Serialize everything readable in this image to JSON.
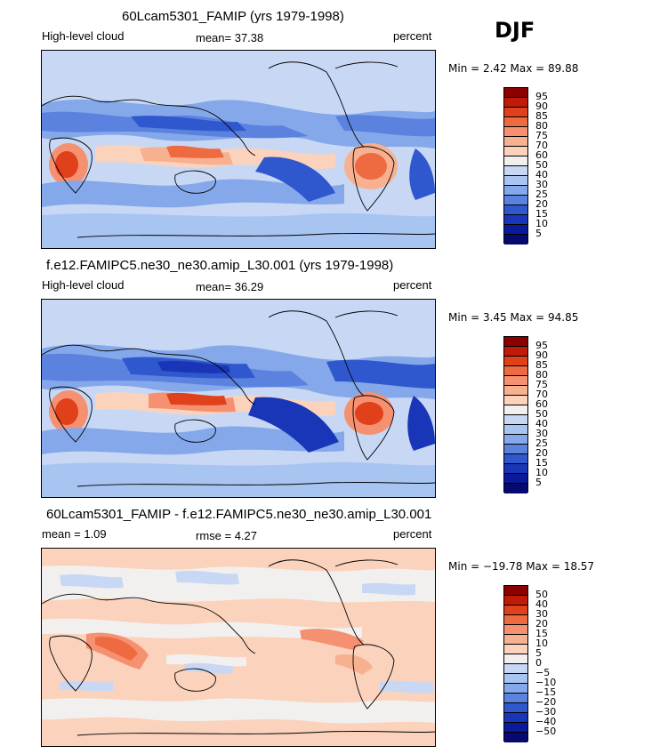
{
  "season": "DJF",
  "panels": [
    {
      "title": "60Lcam5301_FAMIP (yrs 1979-1998)",
      "left_label": "High-level cloud",
      "center_label": "mean=  37.38",
      "right_label": "percent",
      "minmax": "Min =   2.42 Max =  89.88",
      "colorbar_labels": [
        "95",
        "90",
        "85",
        "80",
        "75",
        "70",
        "60",
        "50",
        "40",
        "30",
        "25",
        "20",
        "15",
        "10",
        "5"
      ],
      "colorbar_colors": [
        "#8b0000",
        "#c01a08",
        "#e0401a",
        "#ee6a40",
        "#f59070",
        "#f7b090",
        "#fbd2bc",
        "#f2f0ee",
        "#c8d8f4",
        "#a8c4f0",
        "#84a8ea",
        "#5a82de",
        "#3058ce",
        "#1a36b8",
        "#0a1a9a",
        "#060a70"
      ]
    },
    {
      "title": "f.e12.FAMIPC5.ne30_ne30.amip_L30.001 (yrs 1979-1998)",
      "left_label": "High-level cloud",
      "center_label": "mean=  36.29",
      "right_label": "percent",
      "minmax": "Min =   3.45 Max =  94.85",
      "colorbar_labels": [
        "95",
        "90",
        "85",
        "80",
        "75",
        "70",
        "60",
        "50",
        "40",
        "30",
        "25",
        "20",
        "15",
        "10",
        "5"
      ],
      "colorbar_colors": [
        "#8b0000",
        "#c01a08",
        "#e0401a",
        "#ee6a40",
        "#f59070",
        "#f7b090",
        "#fbd2bc",
        "#f2f0ee",
        "#c8d8f4",
        "#a8c4f0",
        "#84a8ea",
        "#5a82de",
        "#3058ce",
        "#1a36b8",
        "#0a1a9a",
        "#060a70"
      ]
    },
    {
      "title": "60Lcam5301_FAMIP - f.e12.FAMIPC5.ne30_ne30.amip_L30.001",
      "left_label": "mean =    1.09",
      "center_label": "rmse =    4.27",
      "right_label": "percent",
      "minmax": "Min = −19.78 Max =  18.57",
      "colorbar_labels": [
        "50",
        "40",
        "30",
        "20",
        "15",
        "10",
        "5",
        "0",
        "−5",
        "−10",
        "−15",
        "−20",
        "−30",
        "−40",
        "−50"
      ],
      "colorbar_colors": [
        "#8b0000",
        "#c01a08",
        "#e0401a",
        "#ee6a40",
        "#f59070",
        "#f7b090",
        "#fbd2bc",
        "#f2f0ee",
        "#c8d8f4",
        "#a8c4f0",
        "#84a8ea",
        "#5a82de",
        "#3058ce",
        "#1a36b8",
        "#0a1a9a",
        "#060a70"
      ]
    }
  ]
}
